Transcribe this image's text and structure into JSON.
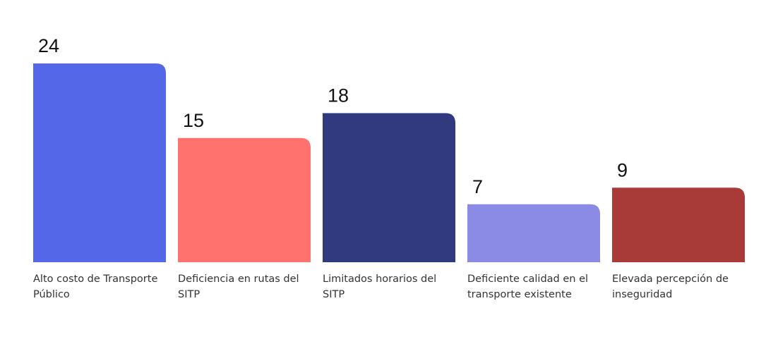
{
  "chart_data": {
    "type": "bar",
    "title": "",
    "xlabel": "",
    "ylabel": "",
    "ylim": [
      0,
      24
    ],
    "grid": false,
    "legend": "none",
    "categories": [
      "Alto costo de Transporte Público",
      "Deficiencia en rutas del SITP",
      "Limitados horarios del SITP",
      "Deficiente calidad en el transporte existente",
      "Elevada percepción de inseguridad"
    ],
    "category_lines": [
      [
        "Alto costo de Transporte",
        "Público"
      ],
      [
        "Deficiencia en rutas del",
        "SITP"
      ],
      [
        "Limitados horarios del",
        "SITP"
      ],
      [
        "Deficiente calidad en el",
        "transporte existente"
      ],
      [
        "Elevada percepción de",
        "inseguridad"
      ]
    ],
    "values": [
      24,
      15,
      18,
      7,
      9
    ],
    "colors": [
      "#5468E7",
      "#FF726E",
      "#313A7E",
      "#8B8BE6",
      "#A83A37"
    ]
  }
}
